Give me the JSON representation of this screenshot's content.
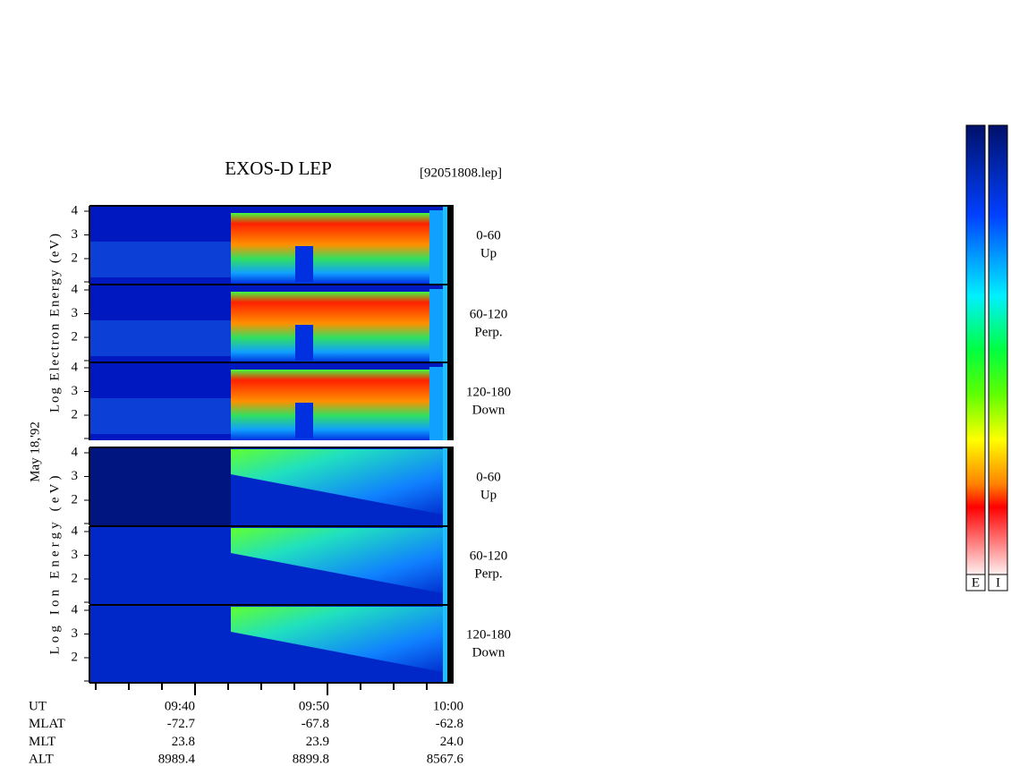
{
  "title": "EXOS-D LEP",
  "file": "[92051808.lep]",
  "date": "May 18,'92",
  "species": [
    {
      "label": "Log Electron Energy (eV)"
    },
    {
      "label": "Log Ion Energy (eV)"
    }
  ],
  "panels": [
    {
      "angle": "0-60",
      "dir": "Up"
    },
    {
      "angle": "60-120",
      "dir": "Perp."
    },
    {
      "angle": "120-180",
      "dir": "Down"
    }
  ],
  "energy_ticks": [
    4,
    3,
    2
  ],
  "ephemeris": {
    "labels": [
      "UT",
      "MLAT",
      "MLT",
      "ALT"
    ],
    "rows": [
      [
        "09:40",
        "09:50",
        "10:00"
      ],
      [
        "-72.7",
        "-67.8",
        "-62.8"
      ],
      [
        "23.8",
        "23.9",
        "24.0"
      ],
      [
        "8989.4",
        "8899.8",
        "8567.6"
      ]
    ]
  },
  "colorbars": [
    "E",
    "I"
  ]
}
